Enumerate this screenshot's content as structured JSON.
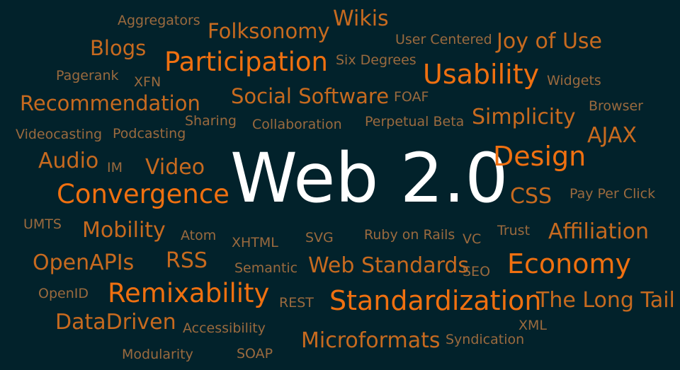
{
  "words": [
    {
      "id": "aggregators",
      "text": "Aggregators"
    },
    {
      "id": "wikis",
      "text": "Wikis"
    },
    {
      "id": "folksonomy",
      "text": "Folksonomy"
    },
    {
      "id": "user-centered",
      "text": "User Centered"
    },
    {
      "id": "joy-of-use",
      "text": "Joy of Use"
    },
    {
      "id": "blogs",
      "text": "Blogs"
    },
    {
      "id": "participation",
      "text": "Participation"
    },
    {
      "id": "six-degrees",
      "text": "Six Degrees"
    },
    {
      "id": "usability",
      "text": "Usability"
    },
    {
      "id": "widgets",
      "text": "Widgets"
    },
    {
      "id": "pagerank",
      "text": "Pagerank"
    },
    {
      "id": "xfn",
      "text": "XFN"
    },
    {
      "id": "recommendation",
      "text": "Recommendation"
    },
    {
      "id": "social-software",
      "text": "Social Software"
    },
    {
      "id": "foaf",
      "text": "FOAF"
    },
    {
      "id": "browser",
      "text": "Browser"
    },
    {
      "id": "simplicity",
      "text": "Simplicity"
    },
    {
      "id": "sharing",
      "text": "Sharing"
    },
    {
      "id": "collaboration",
      "text": "Collaboration"
    },
    {
      "id": "perpetual-beta",
      "text": "Perpetual Beta"
    },
    {
      "id": "videocasting",
      "text": "Videocasting"
    },
    {
      "id": "podcasting",
      "text": "Podcasting"
    },
    {
      "id": "ajax",
      "text": "AJAX"
    },
    {
      "id": "audio",
      "text": "Audio"
    },
    {
      "id": "im",
      "text": "IM"
    },
    {
      "id": "video",
      "text": "Video"
    },
    {
      "id": "web20",
      "text": "Web 2.0"
    },
    {
      "id": "design",
      "text": "Design"
    },
    {
      "id": "convergence",
      "text": "Convergence"
    },
    {
      "id": "css",
      "text": "CSS"
    },
    {
      "id": "pay-per-click",
      "text": "Pay Per Click"
    },
    {
      "id": "umts",
      "text": "UMTS"
    },
    {
      "id": "mobility",
      "text": "Mobility"
    },
    {
      "id": "atom",
      "text": "Atom"
    },
    {
      "id": "xhtml",
      "text": "XHTML"
    },
    {
      "id": "svg",
      "text": "SVG"
    },
    {
      "id": "ruby-on-rails",
      "text": "Ruby on Rails"
    },
    {
      "id": "vc",
      "text": "VC"
    },
    {
      "id": "trust",
      "text": "Trust"
    },
    {
      "id": "affiliation",
      "text": "Affiliation"
    },
    {
      "id": "openapis",
      "text": "OpenAPIs"
    },
    {
      "id": "rss",
      "text": "RSS"
    },
    {
      "id": "semantic",
      "text": "Semantic"
    },
    {
      "id": "web-standards",
      "text": "Web Standards"
    },
    {
      "id": "seo",
      "text": "SEO"
    },
    {
      "id": "economy",
      "text": "Economy"
    },
    {
      "id": "openid",
      "text": "OpenID"
    },
    {
      "id": "remixability",
      "text": "Remixability"
    },
    {
      "id": "rest",
      "text": "REST"
    },
    {
      "id": "standardization",
      "text": "Standardization"
    },
    {
      "id": "the-long-tail",
      "text": "The Long Tail"
    },
    {
      "id": "datadriven",
      "text": "DataDriven"
    },
    {
      "id": "accessibility",
      "text": "Accessibility"
    },
    {
      "id": "xml",
      "text": "XML"
    },
    {
      "id": "microformats",
      "text": "Microformats"
    },
    {
      "id": "syndication",
      "text": "Syndication"
    },
    {
      "id": "modularity",
      "text": "Modularity"
    },
    {
      "id": "soap",
      "text": "SOAP"
    }
  ],
  "colors": {
    "background": "#02222b",
    "dim": "#9a6a3e",
    "mid": "#c76a1f",
    "bright": "#f07010",
    "main": "#ffffff"
  }
}
